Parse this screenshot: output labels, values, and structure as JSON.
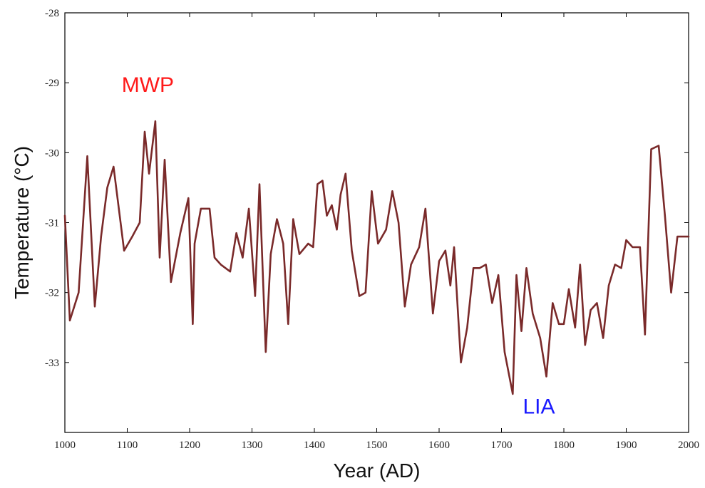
{
  "chart_data": {
    "type": "line",
    "title": "",
    "xlabel": "Year (AD)",
    "ylabel": "Temperature (°C)",
    "xlim": [
      1000,
      2000
    ],
    "ylim": [
      -34,
      -28
    ],
    "y_reversed": false,
    "grid": false,
    "x_ticks": [
      1000,
      1100,
      1200,
      1300,
      1400,
      1500,
      1600,
      1700,
      1800,
      1900,
      2000
    ],
    "x_tick_labels": [
      "1000",
      "1100",
      "1200",
      "1300",
      "1400",
      "1500",
      "1600",
      "1700",
      "1800",
      "1900",
      "2000"
    ],
    "y_ticks": [
      -33,
      -32,
      -31,
      -30,
      -29,
      -28
    ],
    "y_tick_labels": [
      "-33",
      "-32",
      "-31",
      "-30",
      "-29",
      "-28"
    ],
    "line_color": "#7a2a2a",
    "series": [
      {
        "x": [
          1000,
          1008,
          1022,
          1036,
          1048,
          1058,
          1068,
          1078,
          1095,
          1108,
          1120,
          1128,
          1135,
          1145,
          1152,
          1160,
          1170,
          1185,
          1198,
          1205,
          1208,
          1218,
          1232,
          1240,
          1250,
          1265,
          1275,
          1285,
          1295,
          1305,
          1312,
          1322,
          1330,
          1340,
          1350,
          1358,
          1366,
          1376,
          1390,
          1398,
          1405,
          1413,
          1420,
          1428,
          1436,
          1442,
          1450,
          1460,
          1472,
          1482,
          1492,
          1502,
          1515,
          1525,
          1535,
          1545,
          1555,
          1568,
          1578,
          1590,
          1600,
          1610,
          1618,
          1624,
          1635,
          1645,
          1655,
          1665,
          1675,
          1685,
          1695,
          1705,
          1718,
          1724,
          1732,
          1740,
          1750,
          1762,
          1772,
          1782,
          1792,
          1800,
          1808,
          1818,
          1826,
          1834,
          1843,
          1853,
          1863,
          1872,
          1882,
          1892,
          1900,
          1910,
          1922,
          1930,
          1940,
          1952,
          1962,
          1972,
          1982,
          1990,
          2000
        ],
        "values": [
          -30.9,
          -32.4,
          -32.0,
          -30.05,
          -32.2,
          -31.2,
          -30.5,
          -30.2,
          -31.4,
          -31.2,
          -31.0,
          -29.7,
          -30.3,
          -29.55,
          -31.5,
          -30.1,
          -31.85,
          -31.15,
          -30.65,
          -32.45,
          -31.3,
          -30.8,
          -30.8,
          -31.5,
          -31.6,
          -31.7,
          -31.15,
          -31.5,
          -30.8,
          -32.05,
          -30.45,
          -32.85,
          -31.45,
          -30.95,
          -31.3,
          -32.45,
          -30.95,
          -31.45,
          -31.3,
          -31.35,
          -30.45,
          -30.4,
          -30.9,
          -30.75,
          -31.1,
          -30.6,
          -30.3,
          -31.4,
          -32.05,
          -32.0,
          -30.55,
          -31.3,
          -31.1,
          -30.55,
          -31.0,
          -32.2,
          -31.6,
          -31.35,
          -30.8,
          -32.3,
          -31.55,
          -31.4,
          -31.9,
          -31.35,
          -33.0,
          -32.5,
          -31.65,
          -31.65,
          -31.6,
          -32.15,
          -31.75,
          -32.85,
          -33.45,
          -31.75,
          -32.55,
          -31.65,
          -32.3,
          -32.65,
          -33.2,
          -32.15,
          -32.45,
          -32.45,
          -31.95,
          -32.5,
          -31.6,
          -32.75,
          -32.25,
          -32.15,
          -32.65,
          -31.9,
          -31.6,
          -31.65,
          -31.25,
          -31.35,
          -31.35,
          -32.6,
          -29.95,
          -29.9,
          -30.9,
          -32.0,
          -31.2,
          -31.2,
          -31.2
        ]
      }
    ],
    "annotations": [
      {
        "text": "MWP",
        "x": 1133,
        "y": -29.13,
        "color": "#ff1a1a"
      },
      {
        "text": "LIA",
        "x": 1760,
        "y": -33.73,
        "color": "#1a1aff"
      }
    ]
  }
}
